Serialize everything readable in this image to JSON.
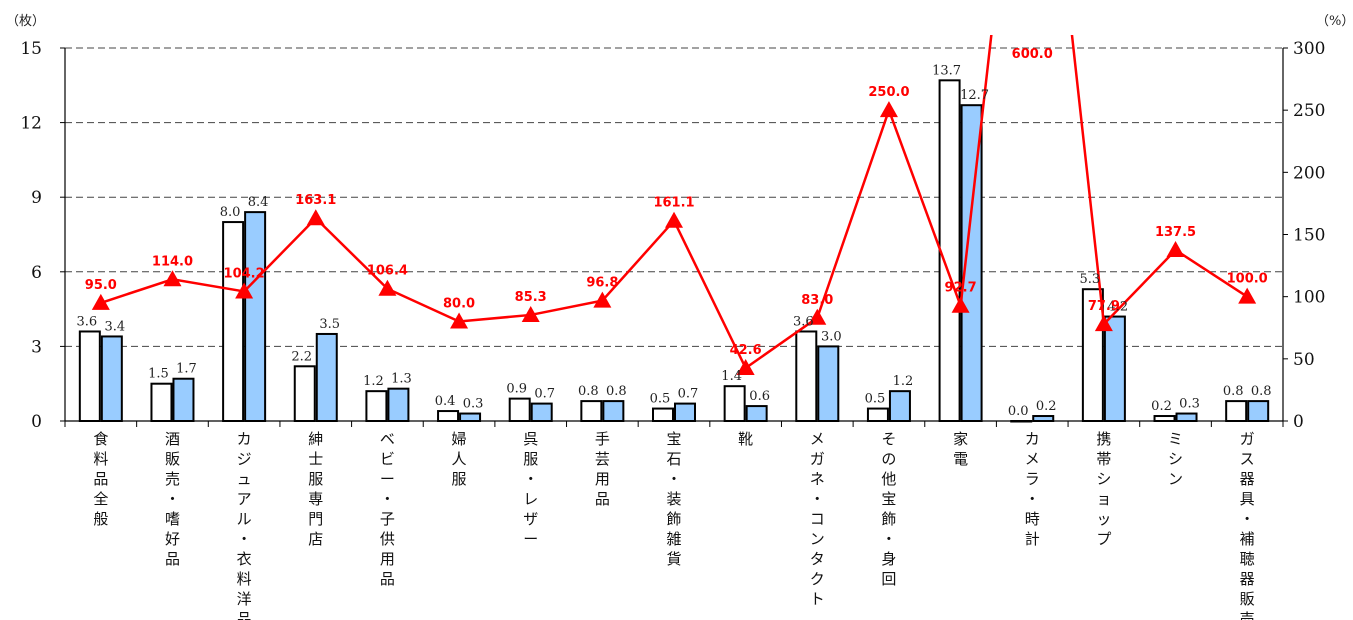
{
  "chart_data": {
    "type": "bar",
    "y_unit_left": "（枚）",
    "y_unit_right": "（%）",
    "ylim_left": [
      0,
      15
    ],
    "yticks_left": [
      "0",
      "3",
      "6",
      "9",
      "12",
      "15"
    ],
    "ylim_right": [
      0,
      300
    ],
    "yticks_right": [
      "0",
      "50",
      "100",
      "150",
      "200",
      "250",
      "300"
    ],
    "grid": "dashed horizontal",
    "categories": [
      "食料品全般",
      "酒販売・嗜好品",
      "カジュアル・衣料洋品",
      "紳士服専門店",
      "ベビー・子供用品",
      "婦人服",
      "呉服・レザー",
      "手芸用品",
      "宝石・装飾雑貨",
      "靴",
      "メガネ・コンタクト",
      "その他宝飾・身回",
      "家電",
      "カメラ・時計",
      "携帯ショップ",
      "ミシン",
      "ガス器具・補聴器販売"
    ],
    "series": [
      {
        "kind": "bar",
        "axis": "left",
        "color": "#ffffff",
        "values": [
          3.6,
          1.5,
          8.0,
          2.2,
          1.2,
          0.4,
          0.9,
          0.8,
          0.5,
          1.4,
          3.6,
          0.5,
          13.7,
          0.0,
          5.3,
          0.2,
          0.8
        ],
        "labels": [
          "3.6",
          "1.5",
          "8.0",
          "2.2",
          "1.2",
          "0.4",
          "0.9",
          "0.8",
          "0.5",
          "1.4",
          "3.6",
          "0.5",
          "13.7",
          "0.0",
          "5.3",
          "0.2",
          "0.8"
        ]
      },
      {
        "kind": "bar",
        "axis": "left",
        "color": "#99ccff",
        "values": [
          3.4,
          1.7,
          8.4,
          3.5,
          1.3,
          0.3,
          0.7,
          0.8,
          0.7,
          0.6,
          3.0,
          1.2,
          12.7,
          0.2,
          4.2,
          0.3,
          0.8
        ],
        "labels": [
          "3.4",
          "1.7",
          "8.4",
          "3.5",
          "1.3",
          "0.3",
          "0.7",
          "0.8",
          "0.7",
          "0.6",
          "3.0",
          "1.2",
          "12.7",
          "0.2",
          "4.2",
          "0.3",
          "0.8"
        ]
      },
      {
        "kind": "line",
        "axis": "right",
        "color": "#ff0000",
        "marker": "triangle",
        "values": [
          95.0,
          114.0,
          104.2,
          163.1,
          106.4,
          80.0,
          85.3,
          96.8,
          161.1,
          42.6,
          83.0,
          250.0,
          92.7,
          600.0,
          77.9,
          137.5,
          100.0
        ],
        "labels": [
          "95.0",
          "114.0",
          "104.2",
          "163.1",
          "106.4",
          "80.0",
          "85.3",
          "96.8",
          "161.1",
          "42.6",
          "83.0",
          "250.0",
          "92.7",
          "600.0",
          "77.9",
          "137.5",
          "100.0"
        ]
      }
    ]
  }
}
